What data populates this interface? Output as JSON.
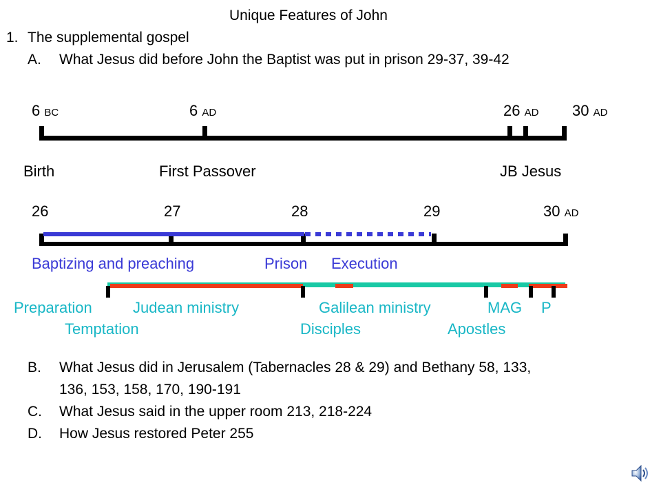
{
  "title": "Unique Features of John",
  "point1": {
    "num": "1.",
    "text": "The supplemental gospel"
  },
  "itemA": {
    "label": "A.",
    "text": "What Jesus did before John the Baptist was put in prison  29-37, 39-42"
  },
  "timeline1": {
    "ticks": [
      {
        "num": "6",
        "era": "BC"
      },
      {
        "num": "6",
        "era": "AD"
      },
      {
        "num": "26",
        "era": "AD"
      },
      {
        "num": "30",
        "era": "AD"
      }
    ],
    "labels": {
      "birth": "Birth",
      "first_passover": "First Passover",
      "jb_jesus": "JB Jesus"
    }
  },
  "timeline2": {
    "ticks": [
      "26",
      "27",
      "28",
      "29",
      "30"
    ],
    "last_era": "AD",
    "john_labels": {
      "baptizing": "Baptizing and preaching",
      "prison": "Prison",
      "execution": "Execution"
    },
    "jesus_labels": {
      "preparation": "Preparation",
      "judean": "Judean ministry",
      "galilean": "Galilean ministry",
      "mag": "MAG",
      "p": "P",
      "temptation": "Temptation",
      "disciples": "Disciples",
      "apostles": "Apostles"
    }
  },
  "itemB": {
    "label": "B.",
    "line1": "What Jesus did in Jerusalem (Tabernacles 28 & 29) and Bethany 58, 133,",
    "line2": "136, 153, 158, 170, 190-191"
  },
  "itemC": {
    "label": "C.",
    "text": "What Jesus said in the upper room 213, 218-224"
  },
  "itemD": {
    "label": "D.",
    "text": "How Jesus restored Peter 255"
  },
  "colors": {
    "john_blue": "#3a3ad6",
    "jesus_teal": "#19c9a5",
    "label_teal": "#19b7c6",
    "ministry_red": "#ee3a1a",
    "axis": "#000000"
  },
  "icons": {
    "speaker": "speaker-icon"
  }
}
